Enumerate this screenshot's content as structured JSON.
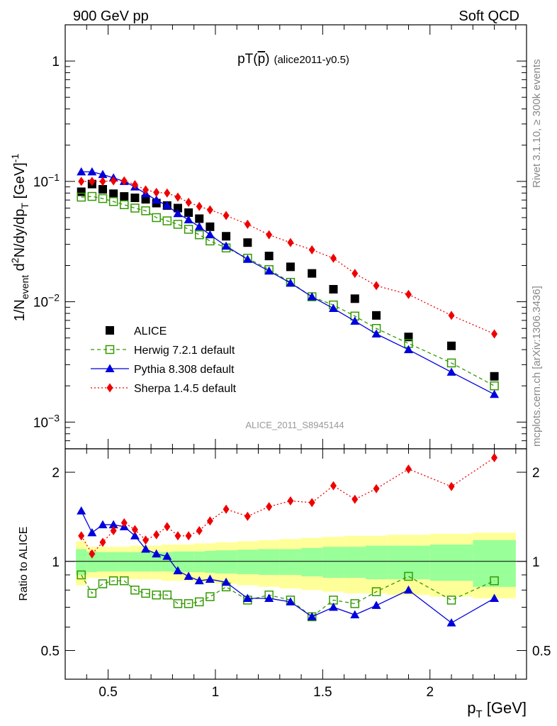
{
  "header": {
    "left": "900 GeV pp",
    "right": "Soft QCD"
  },
  "side_labels": {
    "rivet": "Rivet 3.1.10, ≥ 300k events",
    "mcplots": "mcplots.cern.ch [arXiv:1306.3436]"
  },
  "plot_title": {
    "main": "pT(",
    "pbar": "p",
    "close": ")",
    "tag": "(alice2011-y0.5)"
  },
  "watermark": "ALICE_2011_S8945144",
  "y_axis_label": {
    "a": "1/N",
    "a_sub": "event",
    "b": " d",
    "b_sup": "2",
    "c": "N/dy/dp",
    "c_sub": "T",
    "d": " [GeV]",
    "d_sup": "-1"
  },
  "ratio_axis_label": "Ratio to ALICE",
  "x_axis_label": {
    "main": "p",
    "sub": "T",
    "unit": " [GeV]"
  },
  "colors": {
    "data": "#000000",
    "herwig": "#339900",
    "pythia": "#0000dd",
    "sherpa": "#ee0000",
    "band_inner": "#99ff99",
    "band_outer": "#ffff99"
  },
  "chart_data": [
    {
      "type": "scatter",
      "panel": "main",
      "log_y": true,
      "ylim": [
        0.0006,
        2.0
      ],
      "xlim": [
        0.3,
        2.45
      ],
      "y_ticks": [
        {
          "value": 1,
          "label": "1"
        },
        {
          "value": 0.1,
          "label": "10",
          "sup": "−1"
        },
        {
          "value": 0.01,
          "label": "10",
          "sup": "−2"
        },
        {
          "value": 0.001,
          "label": "10",
          "sup": "−3"
        }
      ],
      "x": [
        0.375,
        0.425,
        0.475,
        0.525,
        0.575,
        0.625,
        0.675,
        0.725,
        0.775,
        0.825,
        0.875,
        0.925,
        0.975,
        1.05,
        1.15,
        1.25,
        1.35,
        1.45,
        1.55,
        1.65,
        1.75,
        1.9,
        2.1,
        2.3
      ],
      "series": [
        {
          "name": "ALICE",
          "key": "data",
          "marker": "square-filled",
          "values": [
            0.082,
            0.095,
            0.086,
            0.079,
            0.075,
            0.073,
            0.071,
            0.066,
            0.063,
            0.06,
            0.055,
            0.049,
            0.042,
            0.035,
            0.031,
            0.024,
            0.0195,
            0.0172,
            0.0127,
            0.0106,
            0.0077,
            0.0051,
            0.0043,
            0.0024
          ]
        },
        {
          "name": "Herwig 7.2.1 default",
          "key": "herwig",
          "marker": "square-open",
          "line": "dashed",
          "values": [
            0.074,
            0.075,
            0.072,
            0.068,
            0.064,
            0.06,
            0.057,
            0.05,
            0.047,
            0.044,
            0.04,
            0.036,
            0.032,
            0.028,
            0.023,
            0.0185,
            0.0145,
            0.011,
            0.0094,
            0.0076,
            0.006,
            0.0045,
            0.0031,
            0.002
          ]
        },
        {
          "name": "Pythia 8.308 default",
          "key": "pythia",
          "marker": "triangle-filled",
          "line": "solid",
          "values": [
            0.12,
            0.12,
            0.114,
            0.107,
            0.1,
            0.09,
            0.079,
            0.07,
            0.063,
            0.054,
            0.048,
            0.042,
            0.036,
            0.029,
            0.0225,
            0.018,
            0.0143,
            0.011,
            0.0088,
            0.0069,
            0.0054,
            0.004,
            0.0026,
            0.0017
          ]
        },
        {
          "name": "Sherpa 1.4.5 default",
          "key": "sherpa",
          "marker": "diamond-filled",
          "line": "dotted",
          "values": [
            0.1,
            0.1,
            0.1,
            0.101,
            0.101,
            0.094,
            0.085,
            0.081,
            0.08,
            0.074,
            0.067,
            0.062,
            0.058,
            0.052,
            0.044,
            0.036,
            0.031,
            0.027,
            0.023,
            0.0172,
            0.0136,
            0.0115,
            0.0077,
            0.0054
          ]
        }
      ]
    },
    {
      "type": "line",
      "panel": "ratio",
      "log_y": true,
      "ylim": [
        0.4,
        2.4
      ],
      "xlim": [
        0.3,
        2.45
      ],
      "y_ticks": [
        {
          "value": 2,
          "label": "2"
        },
        {
          "value": 1,
          "label": "1"
        },
        {
          "value": 0.5,
          "label": "0.5"
        }
      ],
      "x_ticks": [
        {
          "value": 0.5,
          "label": "0.5"
        },
        {
          "value": 1,
          "label": "1"
        },
        {
          "value": 1.5,
          "label": "1.5"
        },
        {
          "value": 2,
          "label": "2"
        }
      ],
      "x": [
        0.375,
        0.425,
        0.475,
        0.525,
        0.575,
        0.625,
        0.675,
        0.725,
        0.775,
        0.825,
        0.875,
        0.925,
        0.975,
        1.05,
        1.15,
        1.25,
        1.35,
        1.45,
        1.55,
        1.65,
        1.75,
        1.9,
        2.1,
        2.3
      ],
      "bands": {
        "edges": [
          0.35,
          0.4,
          0.45,
          0.5,
          0.55,
          0.6,
          0.65,
          0.7,
          0.75,
          0.8,
          0.85,
          0.9,
          0.95,
          1.0,
          1.1,
          1.2,
          1.3,
          1.4,
          1.5,
          1.6,
          1.7,
          1.8,
          2.0,
          2.2,
          2.4
        ],
        "inner": [
          0.1,
          0.08,
          0.075,
          0.075,
          0.075,
          0.075,
          0.075,
          0.075,
          0.075,
          0.08,
          0.08,
          0.08,
          0.085,
          0.09,
          0.095,
          0.1,
          0.1,
          0.11,
          0.12,
          0.12,
          0.13,
          0.13,
          0.14,
          0.18
        ],
        "outer": [
          0.17,
          0.12,
          0.12,
          0.12,
          0.12,
          0.13,
          0.13,
          0.13,
          0.14,
          0.14,
          0.14,
          0.15,
          0.15,
          0.16,
          0.17,
          0.18,
          0.19,
          0.2,
          0.21,
          0.22,
          0.22,
          0.23,
          0.24,
          0.25
        ]
      },
      "series": [
        {
          "name": "Herwig 7.2.1 default",
          "key": "herwig",
          "values": [
            0.9,
            0.78,
            0.84,
            0.86,
            0.86,
            0.8,
            0.78,
            0.77,
            0.77,
            0.72,
            0.72,
            0.73,
            0.76,
            0.82,
            0.74,
            0.77,
            0.74,
            0.65,
            0.74,
            0.72,
            0.79,
            0.89,
            0.74,
            0.86
          ]
        },
        {
          "name": "Pythia 8.308 default",
          "key": "pythia",
          "values": [
            1.48,
            1.25,
            1.33,
            1.33,
            1.31,
            1.22,
            1.1,
            1.06,
            1.04,
            0.93,
            0.89,
            0.86,
            0.87,
            0.85,
            0.75,
            0.75,
            0.73,
            0.65,
            0.7,
            0.66,
            0.71,
            0.8,
            0.62,
            0.75
          ]
        },
        {
          "name": "Sherpa 1.4.5 default",
          "key": "sherpa",
          "values": [
            1.22,
            1.06,
            1.16,
            1.27,
            1.35,
            1.28,
            1.18,
            1.23,
            1.31,
            1.22,
            1.22,
            1.27,
            1.37,
            1.5,
            1.42,
            1.53,
            1.6,
            1.58,
            1.8,
            1.62,
            1.76,
            2.05,
            1.79,
            2.24
          ]
        }
      ]
    }
  ]
}
